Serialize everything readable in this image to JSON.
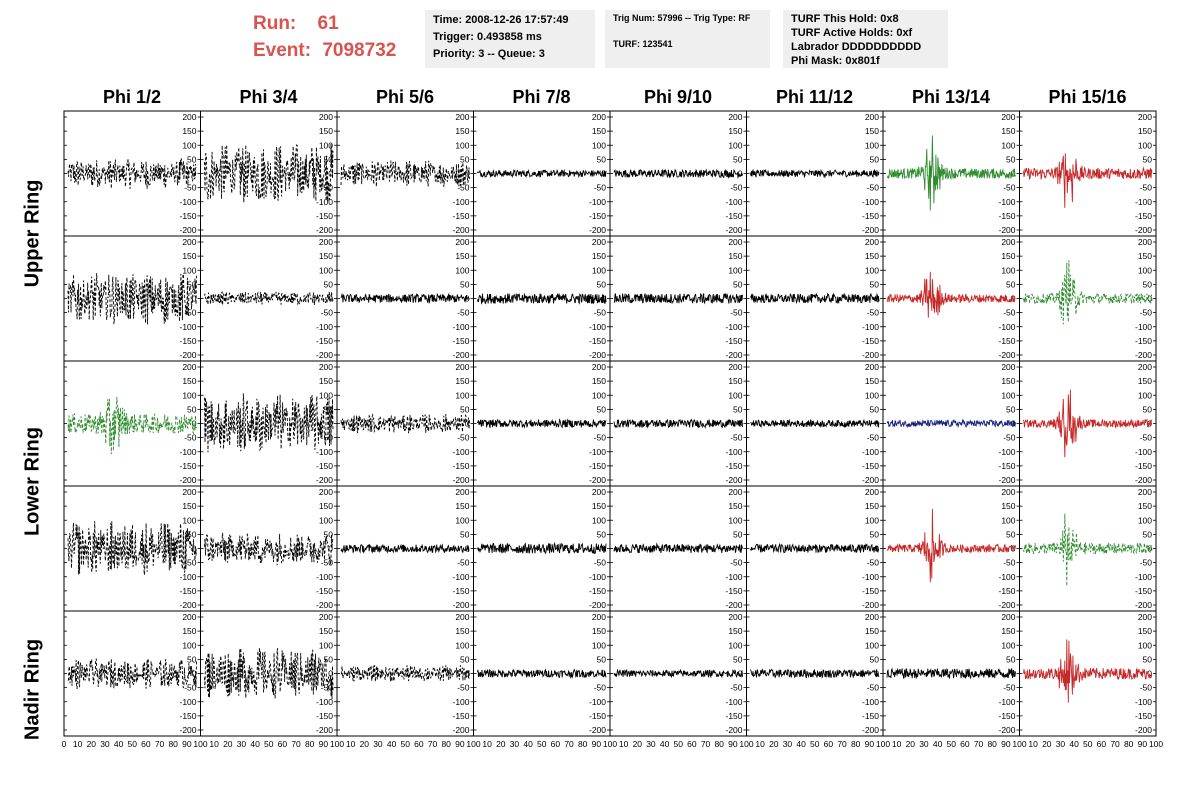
{
  "header": {
    "run_label": "Run:",
    "run_value": "61",
    "event_label": "Event:",
    "event_value": "7098732",
    "time_line": "Time: 2008-12-26 17:57:49",
    "trigger_line": "Trigger: 0.493858 ms",
    "priority_line": "Priority: 3 -- Queue: 3",
    "trig_line": "Trig Num: 57996 -- Trig Type: RF",
    "turf_line": "TURF: 123541",
    "turf_hold_line": "TURF This Hold: 0x8",
    "turf_active_line": "TURF Active Holds: 0xf",
    "labrador_line": "Labrador DDDDDDDDDD",
    "phimask_line": "Phi Mask: 0x801f"
  },
  "columns": [
    "Phi 1/2",
    "Phi 3/4",
    "Phi 5/6",
    "Phi 7/8",
    "Phi 9/10",
    "Phi 11/12",
    "Phi 13/14",
    "Phi 15/16"
  ],
  "row_labels": [
    "Upper Ring",
    "Lower Ring",
    "Nadir Ring"
  ],
  "y_ticks": [
    "200",
    "150",
    "100",
    "50",
    "0",
    "-50",
    "-100",
    "-150",
    "-200"
  ],
  "x_ticks_first": [
    "0",
    "10",
    "20",
    "30",
    "40",
    "50",
    "60",
    "70",
    "80",
    "90",
    "100"
  ],
  "x_ticks_rest": [
    "10",
    "20",
    "30",
    "40",
    "50",
    "60",
    "70",
    "80",
    "90",
    "100"
  ],
  "colors": {
    "title_red": "#d9534f",
    "black": "#000000",
    "green": "#2e8b2e",
    "red": "#c62828",
    "blue": "#1a237e"
  },
  "traces": [
    [
      {
        "c": "black",
        "s": "dash",
        "a": 55
      },
      {
        "c": "black",
        "s": "dash",
        "a": 110
      },
      {
        "c": "black",
        "s": "dash",
        "a": 50
      },
      {
        "c": "black",
        "s": "solid",
        "a": 12
      },
      {
        "c": "black",
        "s": "solid",
        "a": 14
      },
      {
        "c": "black",
        "s": "solid",
        "a": 12
      },
      {
        "c": "green",
        "s": "solid",
        "a": 18,
        "pulse": true
      },
      {
        "c": "red",
        "s": "solid",
        "a": 20,
        "pulse": true
      }
    ],
    [
      {
        "c": "black",
        "s": "dash",
        "a": 95
      },
      {
        "c": "black",
        "s": "dash",
        "a": 25
      },
      {
        "c": "black",
        "s": "solid",
        "a": 15
      },
      {
        "c": "black",
        "s": "solid",
        "a": 18
      },
      {
        "c": "black",
        "s": "solid",
        "a": 18
      },
      {
        "c": "black",
        "s": "solid",
        "a": 16
      },
      {
        "c": "red",
        "s": "solid",
        "a": 15,
        "pulse": true
      },
      {
        "c": "green",
        "s": "dash",
        "a": 18,
        "pulse": true
      }
    ],
    [
      {
        "c": "green",
        "s": "dash",
        "a": 35,
        "pulse": true
      },
      {
        "c": "black",
        "s": "dash",
        "a": 110
      },
      {
        "c": "black",
        "s": "dash",
        "a": 35
      },
      {
        "c": "black",
        "s": "solid",
        "a": 14
      },
      {
        "c": "black",
        "s": "solid",
        "a": 14
      },
      {
        "c": "black",
        "s": "solid",
        "a": 12
      },
      {
        "c": "blue",
        "s": "solid",
        "a": 12
      },
      {
        "c": "red",
        "s": "solid",
        "a": 14,
        "pulse": true
      }
    ],
    [
      {
        "c": "black",
        "s": "dash",
        "a": 100
      },
      {
        "c": "black",
        "s": "dash",
        "a": 60
      },
      {
        "c": "black",
        "s": "solid",
        "a": 14
      },
      {
        "c": "black",
        "s": "solid",
        "a": 18
      },
      {
        "c": "black",
        "s": "solid",
        "a": 16
      },
      {
        "c": "black",
        "s": "solid",
        "a": 15
      },
      {
        "c": "red",
        "s": "solid",
        "a": 14,
        "pulse": true
      },
      {
        "c": "green",
        "s": "dash",
        "a": 20,
        "pulse": true
      }
    ],
    [
      {
        "c": "black",
        "s": "dash",
        "a": 55
      },
      {
        "c": "black",
        "s": "dash",
        "a": 95
      },
      {
        "c": "black",
        "s": "dash",
        "a": 30
      },
      {
        "c": "black",
        "s": "solid",
        "a": 14
      },
      {
        "c": "black",
        "s": "solid",
        "a": 12
      },
      {
        "c": "black",
        "s": "solid",
        "a": 15
      },
      {
        "c": "black",
        "s": "solid",
        "a": 18
      },
      {
        "c": "red",
        "s": "solid",
        "a": 20,
        "pulse": true
      }
    ]
  ]
}
